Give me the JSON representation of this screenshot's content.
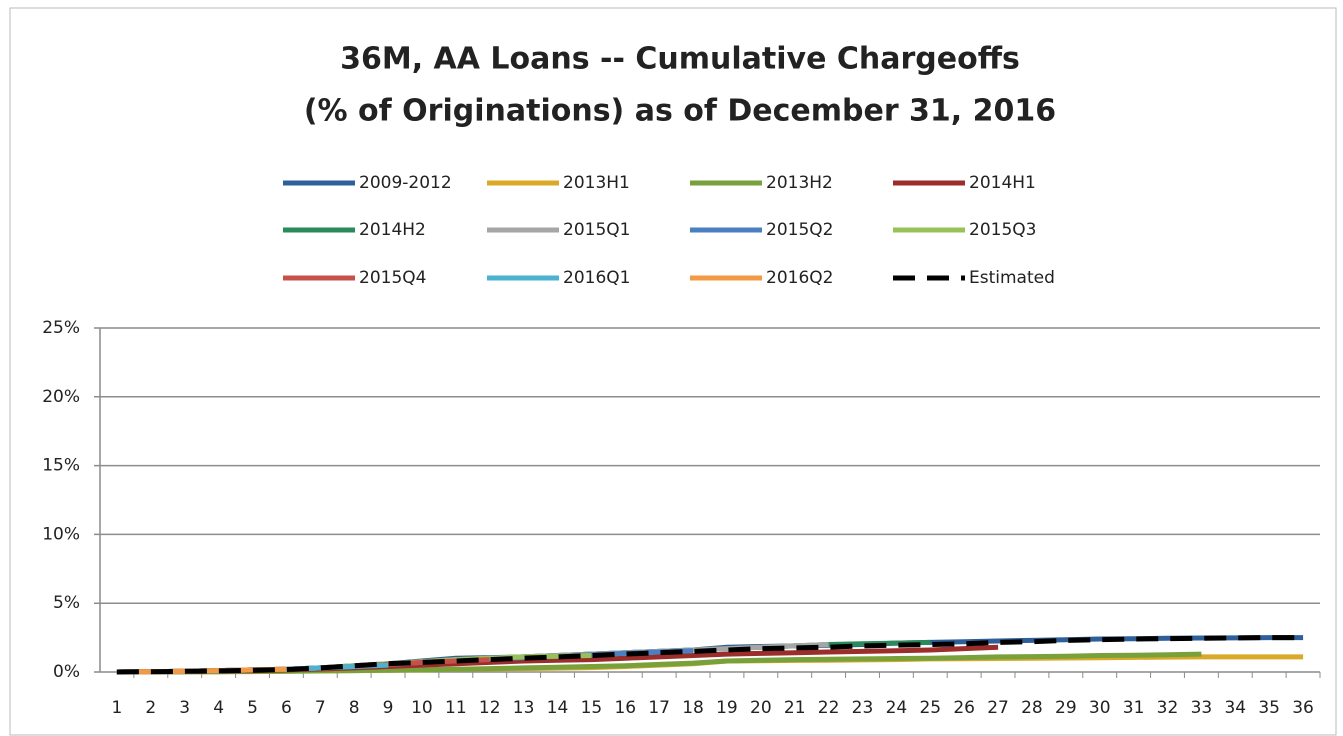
{
  "chart_data": {
    "type": "line",
    "title": [
      "36M, AA Loans -- Cumulative Chargeoffs",
      "(% of Originations) as of December 31, 2016"
    ],
    "categories": [
      1,
      2,
      3,
      4,
      5,
      6,
      7,
      8,
      9,
      10,
      11,
      12,
      13,
      14,
      15,
      16,
      17,
      18,
      19,
      20,
      21,
      22,
      23,
      24,
      25,
      26,
      27,
      28,
      29,
      30,
      31,
      32,
      33,
      34,
      35,
      36
    ],
    "ylim": [
      0,
      25
    ],
    "yticks": [
      {
        "value": 0,
        "label": "0%"
      },
      {
        "value": 5,
        "label": "5%"
      },
      {
        "value": 10,
        "label": "10%"
      },
      {
        "value": 15,
        "label": "15%"
      },
      {
        "value": 20,
        "label": "20%"
      },
      {
        "value": 25,
        "label": "25%"
      }
    ],
    "grid": true,
    "legend": "top",
    "series": [
      {
        "name": "2009-2012",
        "color": "#2f5f98",
        "values": [
          0,
          0.02,
          0.05,
          0.1,
          0.15,
          0.2,
          0.3,
          0.45,
          0.6,
          0.8,
          1.0,
          1.05,
          1.1,
          1.2,
          1.3,
          1.4,
          1.5,
          1.6,
          1.8,
          1.85,
          1.9,
          1.95,
          2.0,
          2.1,
          2.15,
          2.2,
          2.25,
          2.3,
          2.35,
          2.4,
          2.42,
          2.45,
          2.47,
          2.48,
          2.5,
          2.5
        ]
      },
      {
        "name": "2013H1",
        "color": "#d9a927",
        "values": [
          0,
          0,
          0.01,
          0.02,
          0.03,
          0.05,
          0.07,
          0.1,
          0.12,
          0.15,
          0.2,
          0.22,
          0.25,
          0.28,
          0.32,
          0.4,
          0.5,
          0.6,
          0.8,
          0.82,
          0.84,
          0.86,
          0.88,
          0.9,
          0.95,
          0.97,
          0.98,
          1.0,
          1.02,
          1.04,
          1.06,
          1.08,
          1.1,
          1.1,
          1.1,
          1.1
        ]
      },
      {
        "name": "2013H2",
        "color": "#78a13c",
        "values": [
          0,
          0,
          0.01,
          0.02,
          0.04,
          0.06,
          0.08,
          0.1,
          0.13,
          0.16,
          0.2,
          0.25,
          0.3,
          0.35,
          0.4,
          0.45,
          0.55,
          0.65,
          0.8,
          0.85,
          0.9,
          0.92,
          0.95,
          0.98,
          1.0,
          1.05,
          1.1,
          1.12,
          1.15,
          1.2,
          1.22,
          1.25,
          1.3,
          null,
          null,
          null
        ]
      },
      {
        "name": "2014H1",
        "color": "#9b2d2a",
        "values": [
          0,
          0.02,
          0.04,
          0.07,
          0.1,
          0.15,
          0.22,
          0.3,
          0.4,
          0.5,
          0.6,
          0.7,
          0.8,
          0.85,
          0.9,
          1.0,
          1.1,
          1.2,
          1.3,
          1.35,
          1.4,
          1.45,
          1.5,
          1.55,
          1.6,
          1.7,
          1.8,
          null,
          null,
          null,
          null,
          null,
          null,
          null,
          null,
          null
        ]
      },
      {
        "name": "2014H2",
        "color": "#2a8a5a",
        "values": [
          0,
          0.02,
          0.05,
          0.1,
          0.15,
          0.2,
          0.3,
          0.4,
          0.55,
          0.7,
          0.85,
          1.0,
          1.1,
          1.2,
          1.3,
          1.4,
          1.5,
          1.6,
          1.7,
          1.8,
          1.9,
          2.0,
          2.05,
          2.1,
          2.15,
          null,
          null,
          null,
          null,
          null,
          null,
          null,
          null,
          null,
          null,
          null
        ]
      },
      {
        "name": "2015Q1",
        "color": "#a6a6a6",
        "values": [
          0,
          0.02,
          0.05,
          0.1,
          0.15,
          0.2,
          0.3,
          0.45,
          0.6,
          0.75,
          0.9,
          1.0,
          1.1,
          1.2,
          1.3,
          1.4,
          1.5,
          1.6,
          1.7,
          1.8,
          1.9,
          2.0,
          null,
          null,
          null,
          null,
          null,
          null,
          null,
          null,
          null,
          null,
          null,
          null,
          null,
          null
        ]
      },
      {
        "name": "2015Q2",
        "color": "#4a7fc1",
        "values": [
          0,
          0.02,
          0.05,
          0.1,
          0.15,
          0.2,
          0.3,
          0.4,
          0.55,
          0.7,
          0.85,
          0.95,
          1.05,
          1.15,
          1.25,
          1.35,
          1.45,
          1.55,
          null,
          null,
          null,
          null,
          null,
          null,
          null,
          null,
          null,
          null,
          null,
          null,
          null,
          null,
          null,
          null,
          null,
          null
        ]
      },
      {
        "name": "2015Q3",
        "color": "#98c15a",
        "values": [
          0,
          0.02,
          0.05,
          0.1,
          0.15,
          0.2,
          0.3,
          0.45,
          0.6,
          0.75,
          0.9,
          1.0,
          1.1,
          1.15,
          1.2,
          null,
          null,
          null,
          null,
          null,
          null,
          null,
          null,
          null,
          null,
          null,
          null,
          null,
          null,
          null,
          null,
          null,
          null,
          null,
          null,
          null
        ]
      },
      {
        "name": "2015Q4",
        "color": "#c8504b",
        "values": [
          0,
          0.02,
          0.05,
          0.1,
          0.15,
          0.2,
          0.3,
          0.4,
          0.55,
          0.7,
          0.8,
          0.9,
          null,
          null,
          null,
          null,
          null,
          null,
          null,
          null,
          null,
          null,
          null,
          null,
          null,
          null,
          null,
          null,
          null,
          null,
          null,
          null,
          null,
          null,
          null,
          null
        ]
      },
      {
        "name": "2016Q1",
        "color": "#4bb3d0",
        "values": [
          0,
          0.02,
          0.05,
          0.1,
          0.15,
          0.2,
          0.3,
          0.4,
          0.5,
          null,
          null,
          null,
          null,
          null,
          null,
          null,
          null,
          null,
          null,
          null,
          null,
          null,
          null,
          null,
          null,
          null,
          null,
          null,
          null,
          null,
          null,
          null,
          null,
          null,
          null,
          null
        ]
      },
      {
        "name": "2016Q2",
        "color": "#f29a45",
        "values": [
          0,
          0.02,
          0.05,
          0.1,
          0.15,
          0.2,
          null,
          null,
          null,
          null,
          null,
          null,
          null,
          null,
          null,
          null,
          null,
          null,
          null,
          null,
          null,
          null,
          null,
          null,
          null,
          null,
          null,
          null,
          null,
          null,
          null,
          null,
          null,
          null,
          null,
          null
        ]
      },
      {
        "name": "Estimated",
        "color": "#000000",
        "dashed": true,
        "values": [
          0,
          0.02,
          0.05,
          0.08,
          0.12,
          0.18,
          0.3,
          0.45,
          0.6,
          0.7,
          0.8,
          0.9,
          1.0,
          1.1,
          1.2,
          1.3,
          1.4,
          1.5,
          1.6,
          1.7,
          1.75,
          1.8,
          1.9,
          1.95,
          2.0,
          2.05,
          2.15,
          2.2,
          2.3,
          2.35,
          2.4,
          2.42,
          2.45,
          2.48,
          2.5,
          2.5
        ]
      }
    ]
  }
}
